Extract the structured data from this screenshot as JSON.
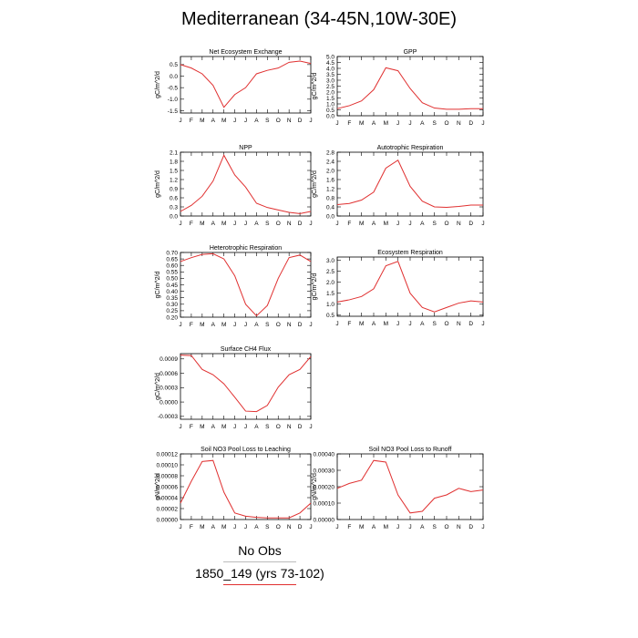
{
  "title": "Mediterranean (34-45N,10W-30E)",
  "legend": {
    "obs": "No Obs",
    "case": "1850_149 (yrs 73-102)",
    "obs_color": "#bbbbbb",
    "case_color": "#e03030"
  },
  "chart_data": [
    {
      "type": "line",
      "title": "Net Ecosystem Exchange",
      "ylabel": "gC/m^2/d",
      "categories": [
        "J",
        "F",
        "M",
        "A",
        "M",
        "J",
        "J",
        "A",
        "S",
        "O",
        "N",
        "D",
        "J"
      ],
      "ylim": [
        -1.6,
        0.85
      ],
      "yticks": [
        "-1.5",
        "-1.0",
        "-0.5",
        "0.0",
        "0.5"
      ],
      "ytick_values": [
        -1.5,
        -1.0,
        -0.5,
        0.0,
        0.5
      ],
      "series": [
        {
          "values": [
            0.5,
            0.35,
            0.1,
            -0.4,
            -1.35,
            -0.8,
            -0.5,
            0.1,
            0.25,
            0.35,
            0.6,
            0.65,
            0.55
          ],
          "color": "#e03030"
        }
      ]
    },
    {
      "type": "line",
      "title": "GPP",
      "ylabel": "gC/m^2/d",
      "categories": [
        "J",
        "F",
        "M",
        "A",
        "M",
        "J",
        "J",
        "A",
        "S",
        "O",
        "N",
        "D",
        "J"
      ],
      "ylim": [
        0.0,
        5.0
      ],
      "yticks": [
        "0.0",
        "0.5",
        "1.0",
        "1.5",
        "2.0",
        "2.5",
        "3.0",
        "3.5",
        "4.0",
        "4.5",
        "5.0"
      ],
      "ytick_values": [
        0.0,
        0.5,
        1.0,
        1.5,
        2.0,
        2.5,
        3.0,
        3.5,
        4.0,
        4.5,
        5.0
      ],
      "series": [
        {
          "values": [
            0.6,
            0.85,
            1.25,
            2.2,
            4.05,
            3.8,
            2.3,
            1.1,
            0.65,
            0.55,
            0.55,
            0.6,
            0.6
          ],
          "color": "#e03030"
        }
      ]
    },
    {
      "type": "line",
      "title": "NPP",
      "ylabel": "gC/m^2/d",
      "categories": [
        "J",
        "F",
        "M",
        "A",
        "M",
        "J",
        "J",
        "A",
        "S",
        "O",
        "N",
        "D",
        "J"
      ],
      "ylim": [
        0.0,
        2.1
      ],
      "yticks": [
        "0.0",
        "0.3",
        "0.6",
        "0.9",
        "1.2",
        "1.5",
        "1.8",
        "2.1"
      ],
      "ytick_values": [
        0.0,
        0.3,
        0.6,
        0.9,
        1.2,
        1.5,
        1.8,
        2.1
      ],
      "series": [
        {
          "values": [
            0.15,
            0.35,
            0.65,
            1.15,
            2.0,
            1.35,
            0.95,
            0.42,
            0.28,
            0.2,
            0.12,
            0.08,
            0.15
          ],
          "color": "#e03030"
        }
      ]
    },
    {
      "type": "line",
      "title": "Autotrophic Respiration",
      "ylabel": "gC/m^2/d",
      "categories": [
        "J",
        "F",
        "M",
        "A",
        "M",
        "J",
        "J",
        "A",
        "S",
        "O",
        "N",
        "D",
        "J"
      ],
      "ylim": [
        0.0,
        2.8
      ],
      "yticks": [
        "0.0",
        "0.4",
        "0.8",
        "1.2",
        "1.6",
        "2.0",
        "2.4",
        "2.8"
      ],
      "ytick_values": [
        0.0,
        0.4,
        0.8,
        1.2,
        1.6,
        2.0,
        2.4,
        2.8
      ],
      "series": [
        {
          "values": [
            0.5,
            0.55,
            0.7,
            1.05,
            2.1,
            2.45,
            1.3,
            0.65,
            0.4,
            0.38,
            0.42,
            0.48,
            0.48
          ],
          "color": "#e03030"
        }
      ]
    },
    {
      "type": "line",
      "title": "Heterotrophic Respiration",
      "ylabel": "gC/m^2/d",
      "categories": [
        "J",
        "F",
        "M",
        "A",
        "M",
        "J",
        "J",
        "A",
        "S",
        "O",
        "N",
        "D",
        "J"
      ],
      "ylim": [
        0.2,
        0.7
      ],
      "yticks": [
        "0.20",
        "0.25",
        "0.30",
        "0.35",
        "0.40",
        "0.45",
        "0.50",
        "0.55",
        "0.60",
        "0.65",
        "0.70"
      ],
      "ytick_values": [
        0.2,
        0.25,
        0.3,
        0.35,
        0.4,
        0.45,
        0.5,
        0.55,
        0.6,
        0.65,
        0.7
      ],
      "series": [
        {
          "values": [
            0.63,
            0.66,
            0.685,
            0.69,
            0.65,
            0.52,
            0.3,
            0.21,
            0.29,
            0.5,
            0.66,
            0.68,
            0.63
          ],
          "color": "#e03030"
        }
      ]
    },
    {
      "type": "line",
      "title": "Ecosystem Respiration",
      "ylabel": "gC/m^2/d",
      "categories": [
        "J",
        "F",
        "M",
        "A",
        "M",
        "J",
        "J",
        "A",
        "S",
        "O",
        "N",
        "D",
        "J"
      ],
      "ylim": [
        0.45,
        3.15
      ],
      "yticks": [
        "0.5",
        "1.0",
        "1.5",
        "2.0",
        "2.5",
        "3.0"
      ],
      "ytick_values": [
        0.5,
        1.0,
        1.5,
        2.0,
        2.5,
        3.0
      ],
      "series": [
        {
          "values": [
            1.1,
            1.2,
            1.35,
            1.7,
            2.75,
            2.95,
            1.5,
            0.85,
            0.65,
            0.85,
            1.05,
            1.15,
            1.1
          ],
          "color": "#e03030"
        }
      ]
    },
    {
      "type": "line",
      "title": "Surface CH4 Flux",
      "ylabel": "gC/m^2/d",
      "categories": [
        "J",
        "F",
        "M",
        "A",
        "M",
        "J",
        "J",
        "A",
        "S",
        "O",
        "N",
        "D",
        "J"
      ],
      "ylim": [
        -0.00036,
        0.00101
      ],
      "yticks": [
        "-0.0003",
        "0.0000",
        "0.0003",
        "0.0006",
        "0.0009"
      ],
      "ytick_values": [
        -0.0003,
        0.0,
        0.0003,
        0.0006,
        0.0009
      ],
      "series": [
        {
          "values": [
            0.00098,
            0.00097,
            0.00068,
            0.00057,
            0.00038,
            0.0001,
            -0.00019,
            -0.0002,
            -7e-05,
            0.00031,
            0.00057,
            0.00068,
            0.00095
          ],
          "color": "#e03030"
        }
      ]
    },
    {
      "type": "line",
      "title": "Soil NO3 Pool Loss to Leaching",
      "ylabel": "gN/m^2/d",
      "categories": [
        "J",
        "F",
        "M",
        "A",
        "M",
        "J",
        "J",
        "A",
        "S",
        "O",
        "N",
        "D",
        "J"
      ],
      "ylim": [
        0.0,
        0.00012
      ],
      "yticks": [
        "0.00000",
        "0.00002",
        "0.00004",
        "0.00006",
        "0.00008",
        "0.00010",
        "0.00012"
      ],
      "ytick_values": [
        0.0,
        2e-05,
        4e-05,
        6e-05,
        8e-05,
        0.0001,
        0.00012
      ],
      "series": [
        {
          "values": [
            3e-05,
            7e-05,
            0.000106,
            0.000108,
            5e-05,
            1.2e-05,
            6e-06,
            4e-06,
            3e-06,
            3e-06,
            3e-06,
            1.2e-05,
            3e-05
          ],
          "color": "#e03030"
        }
      ]
    },
    {
      "type": "line",
      "title": "Soil NO3 Pool Loss to Runoff",
      "ylabel": "gN/m^2/d",
      "categories": [
        "J",
        "F",
        "M",
        "A",
        "M",
        "J",
        "J",
        "A",
        "S",
        "O",
        "N",
        "D",
        "J"
      ],
      "ylim": [
        0.0,
        0.0004
      ],
      "yticks": [
        "0.00000",
        "0.00010",
        "0.00020",
        "0.00030",
        "0.00040"
      ],
      "ytick_values": [
        0.0,
        0.0001,
        0.0002,
        0.0003,
        0.0004
      ],
      "series": [
        {
          "values": [
            0.00019,
            0.00022,
            0.00024,
            0.00036,
            0.00035,
            0.00015,
            4e-05,
            5e-05,
            0.00013,
            0.00015,
            0.00019,
            0.00017,
            0.00018
          ],
          "color": "#e03030"
        }
      ]
    }
  ]
}
